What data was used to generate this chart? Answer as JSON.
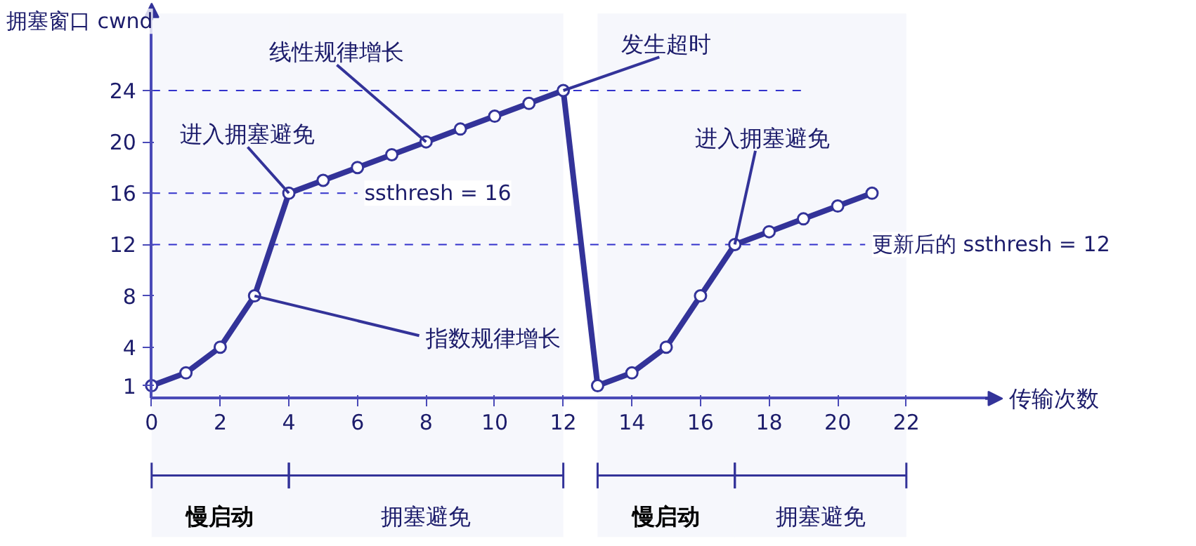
{
  "chart_data": {
    "type": "line",
    "ylabel": "拥塞窗口 cwnd",
    "xlabel": "传输次数",
    "x": [
      0,
      1,
      2,
      3,
      4,
      5,
      6,
      7,
      8,
      9,
      10,
      11,
      12,
      13,
      14,
      15,
      16,
      17,
      18,
      19,
      20,
      21
    ],
    "series": [
      {
        "color": "#333399",
        "values": [
          1,
          2,
          4,
          8,
          16,
          17,
          18,
          19,
          20,
          21,
          22,
          23,
          24,
          1,
          2,
          4,
          8,
          12,
          13,
          14,
          15,
          16
        ]
      }
    ],
    "xlim": [
      0,
      24.5
    ],
    "ylim": [
      0,
      30
    ],
    "xticks": [
      0,
      2,
      4,
      6,
      8,
      10,
      12,
      14,
      16,
      18,
      20,
      22
    ],
    "yticks": [
      1,
      4,
      8,
      12,
      16,
      20,
      24
    ],
    "marker": "circle",
    "grid": false,
    "ref_lines": [
      {
        "axis": "y",
        "value": 24,
        "label": null,
        "color": "#3333cc",
        "line_style": "dashed"
      },
      {
        "axis": "y",
        "value": 16,
        "label": "ssthresh = 16",
        "color": "#3333cc",
        "line_style": "dashed"
      },
      {
        "axis": "y",
        "value": 12,
        "label": "更新后的 ssthresh = 12",
        "color": "#3333cc",
        "line_style": "dashed"
      }
    ],
    "bands": [
      {
        "axis": "x",
        "from": 0,
        "to": 4,
        "label": "慢启动"
      },
      {
        "axis": "x",
        "from": 4,
        "to": 12,
        "label": "拥塞避免"
      },
      {
        "axis": "x",
        "from": 13,
        "to": 17,
        "label": "慢启动"
      },
      {
        "axis": "x",
        "from": 17,
        "to": 22,
        "label": "拥塞避免"
      }
    ],
    "annotations": [
      {
        "text": "线性规律增长",
        "x": 8,
        "y": 20
      },
      {
        "text": "发生超时",
        "x": 12,
        "y": 24
      },
      {
        "text": "进入拥塞避免",
        "x": 4,
        "y": 16
      },
      {
        "text": "指数规律增长",
        "x": 3,
        "y": 8
      },
      {
        "text": "进入拥塞避免",
        "x": 17,
        "y": 12
      }
    ]
  }
}
